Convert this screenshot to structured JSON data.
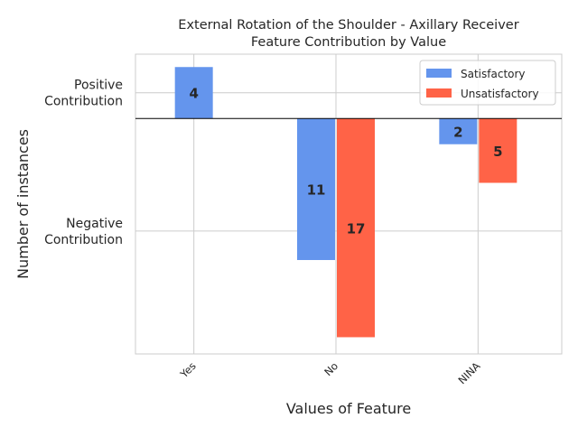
{
  "chart_data": {
    "type": "bar",
    "title": "External Rotation of the Shoulder - Axillary Receiver\nFeature Contribution by Value",
    "xlabel": "Values of Feature",
    "ylabel": "Number of instances",
    "categories": [
      "Yes",
      "No",
      "NINA"
    ],
    "series": [
      {
        "name": "Satisfactory",
        "color": "#6495ED",
        "values": [
          4,
          -11,
          -2
        ],
        "labels": [
          "4",
          "11",
          "2"
        ]
      },
      {
        "name": "Unsatisfactory",
        "color": "#FF6347",
        "values": [
          null,
          -17,
          -5
        ],
        "labels": [
          "",
          "17",
          "5"
        ]
      }
    ],
    "ylim": [
      -18.3,
      5
    ],
    "y_tick_values": [
      2,
      -8.75
    ],
    "y_tick_labels": [
      "Positive\nContribution",
      "Negative\nContribution"
    ],
    "grid": true,
    "legend_position": "top-right",
    "zero_line": true
  }
}
